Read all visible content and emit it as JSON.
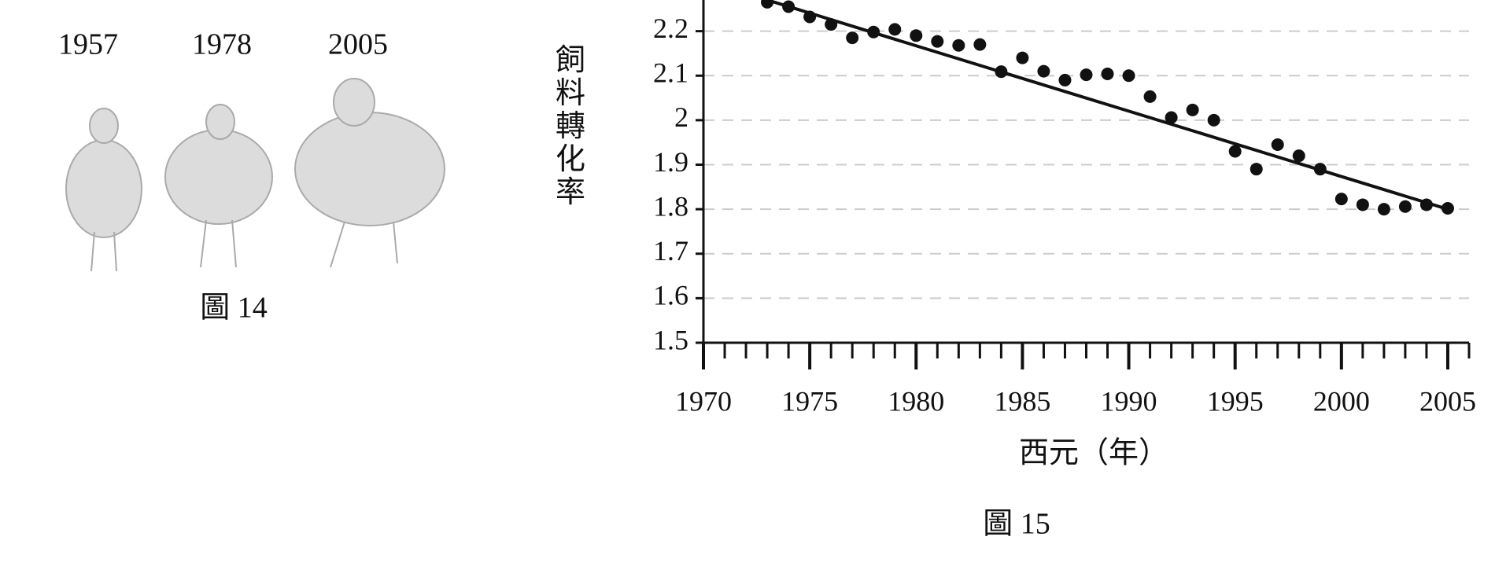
{
  "figure14": {
    "labels": [
      "1957",
      "1978",
      "2005"
    ],
    "caption": "圖 14"
  },
  "chart_data": {
    "type": "scatter",
    "y_label": "飼料轉化率",
    "x_label": "西元（年）",
    "caption": "圖 15",
    "x": [
      1973,
      1974,
      1975,
      1976,
      1977,
      1978,
      1979,
      1980,
      1981,
      1982,
      1983,
      1984,
      1985,
      1986,
      1987,
      1988,
      1989,
      1990,
      1991,
      1992,
      1993,
      1994,
      1995,
      1996,
      1997,
      1998,
      1999,
      2000,
      2001,
      2002,
      2003,
      2004,
      2005
    ],
    "values": [
      2.265,
      2.255,
      2.232,
      2.215,
      2.185,
      2.198,
      2.204,
      2.19,
      2.177,
      2.168,
      2.17,
      2.109,
      2.14,
      2.11,
      2.09,
      2.102,
      2.104,
      2.1,
      2.053,
      2.006,
      2.023,
      2.0,
      1.93,
      1.89,
      1.945,
      1.92,
      1.89,
      1.823,
      1.81,
      1.8,
      1.806,
      1.81,
      1.802
    ],
    "color": "#111111",
    "trend": {
      "x": [
        1973,
        2005
      ],
      "values": [
        2.27,
        1.8
      ]
    },
    "xlim": [
      1970,
      2006
    ],
    "ylim": [
      1.5,
      2.27
    ],
    "xticks": [
      1970,
      1975,
      1980,
      1985,
      1990,
      1995,
      2000,
      2005
    ],
    "xminorticks": [
      1971,
      1972,
      1973,
      1974,
      1976,
      1977,
      1978,
      1979,
      1981,
      1982,
      1983,
      1984,
      1986,
      1987,
      1988,
      1989,
      1991,
      1992,
      1993,
      1994,
      1996,
      1997,
      1998,
      1999,
      2001,
      2002,
      2003,
      2004,
      2006
    ],
    "yticks": [
      1.5,
      1.6,
      1.7,
      1.8,
      1.9,
      2,
      2.1,
      2.2
    ],
    "grid": true
  }
}
